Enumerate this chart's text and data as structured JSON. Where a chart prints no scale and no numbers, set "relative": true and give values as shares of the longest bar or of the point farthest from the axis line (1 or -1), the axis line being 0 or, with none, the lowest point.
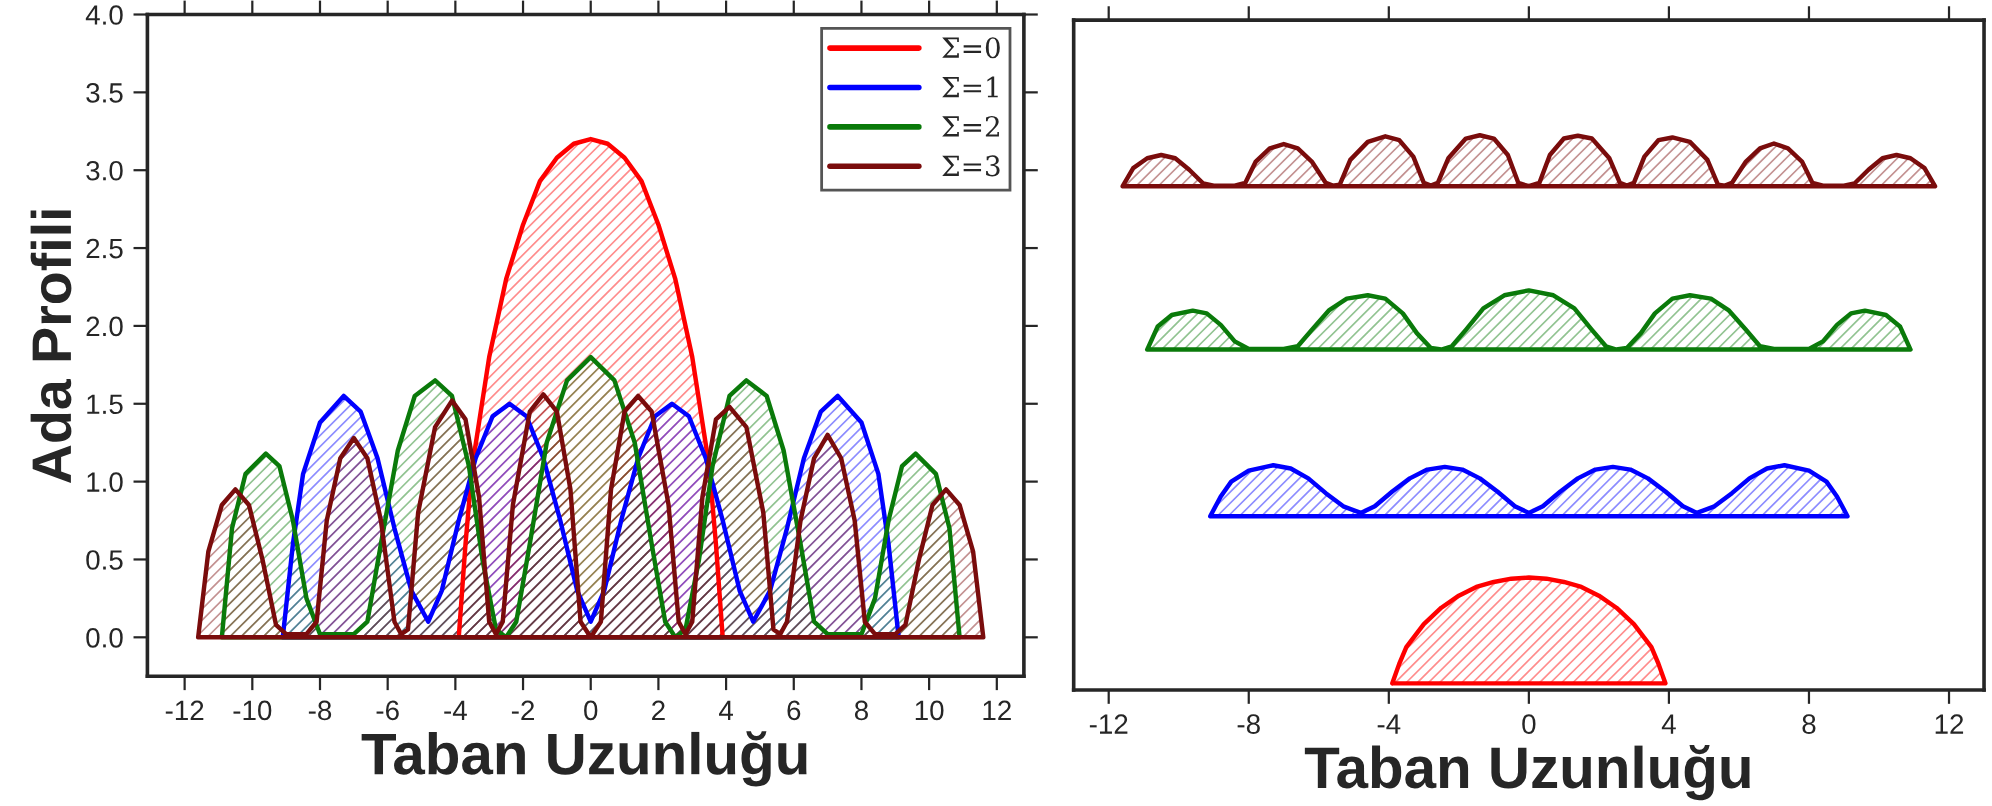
{
  "chart_data": [
    {
      "type": "area",
      "xlabel": "Taban Uzunluğu",
      "ylabel": "Ada Profili",
      "xlim": [
        -13.1,
        12.8
      ],
      "xticks": [
        -12,
        -10,
        -8,
        -6,
        -4,
        -2,
        0,
        2,
        4,
        6,
        8,
        10,
        12
      ],
      "ylim": [
        -0.25,
        4.0
      ],
      "yticks": [
        {
          "value": 0,
          "label": "0.0"
        },
        0.5,
        {
          "value": 1,
          "label": "1.0"
        },
        1.5,
        {
          "value": 2,
          "label": "2.0"
        },
        2.5,
        {
          "value": 3,
          "label": "3.0"
        },
        3.5,
        {
          "value": 4,
          "label": "4.0"
        }
      ],
      "legend": "top right",
      "series": [
        {
          "name": "Σ=0",
          "color": "#ff0000",
          "x": [
            -3.9,
            -3.7,
            -3.5,
            -3.0,
            -2.5,
            -2.0,
            -1.5,
            -1.0,
            -0.5,
            0,
            0.5,
            1.0,
            1.5,
            2.0,
            2.5,
            3.0,
            3.5,
            3.7,
            3.9
          ],
          "values": [
            0,
            0.6,
            1.1,
            1.8,
            2.3,
            2.65,
            2.93,
            3.08,
            3.17,
            3.2,
            3.17,
            3.08,
            2.93,
            2.65,
            2.3,
            1.8,
            1.1,
            0.6,
            0
          ]
        },
        {
          "name": "Σ=1",
          "color": "#0000ff",
          "x": [
            -9.1,
            -8.8,
            -8.5,
            -8.0,
            -7.3,
            -6.8,
            -6.3,
            -5.8,
            -5.3,
            -4.8,
            -4.4,
            -3.9,
            -3.4,
            -2.9,
            -2.4,
            -1.9,
            -1.4,
            -0.9,
            -0.4,
            0,
            0.4,
            0.9,
            1.4,
            1.9,
            2.4,
            2.9,
            3.4,
            3.9,
            4.4,
            4.8,
            5.3,
            5.8,
            6.3,
            6.8,
            7.3,
            8.0,
            8.5,
            8.8,
            9.1
          ],
          "values": [
            0,
            0.6,
            1.05,
            1.38,
            1.55,
            1.45,
            1.15,
            0.7,
            0.3,
            0.1,
            0.3,
            0.75,
            1.15,
            1.42,
            1.5,
            1.42,
            1.15,
            0.75,
            0.3,
            0.1,
            0.3,
            0.75,
            1.15,
            1.42,
            1.5,
            1.42,
            1.15,
            0.75,
            0.3,
            0.1,
            0.3,
            0.7,
            1.15,
            1.45,
            1.55,
            1.38,
            1.05,
            0.6,
            0
          ]
        },
        {
          "name": "Σ=2",
          "color": "#0a7a0a",
          "x": [
            -10.9,
            -10.6,
            -10.2,
            -9.6,
            -9.2,
            -8.8,
            -8.4,
            -8.0,
            -7.0,
            -6.6,
            -6.2,
            -5.7,
            -5.2,
            -4.6,
            -4.1,
            -3.6,
            -3.2,
            -2.8,
            -2.5,
            -2.2,
            -1.8,
            -1.3,
            -0.7,
            0,
            0.7,
            1.3,
            1.8,
            2.2,
            2.5,
            2.8,
            3.2,
            3.6,
            4.1,
            4.6,
            5.2,
            5.7,
            6.2,
            6.6,
            7.0,
            8.0,
            8.4,
            8.8,
            9.2,
            9.6,
            10.2,
            10.6,
            10.9
          ],
          "values": [
            0,
            0.7,
            1.05,
            1.18,
            1.1,
            0.75,
            0.25,
            0.02,
            0.02,
            0.1,
            0.6,
            1.2,
            1.55,
            1.65,
            1.55,
            1.1,
            0.5,
            0.05,
            0,
            0.1,
            0.6,
            1.25,
            1.65,
            1.8,
            1.65,
            1.25,
            0.6,
            0.1,
            0,
            0.05,
            0.5,
            1.1,
            1.55,
            1.65,
            1.55,
            1.2,
            0.6,
            0.1,
            0.02,
            0.02,
            0.25,
            0.75,
            1.1,
            1.18,
            1.05,
            0.7,
            0
          ]
        },
        {
          "name": "Σ=3",
          "color": "#7a0c0c",
          "x": [
            -11.6,
            -11.3,
            -10.9,
            -10.5,
            -10.1,
            -9.7,
            -9.3,
            -9.0,
            -8.4,
            -8.1,
            -7.8,
            -7.4,
            -7.0,
            -6.6,
            -6.2,
            -5.8,
            -5.6,
            -5.4,
            -5.1,
            -4.6,
            -4.1,
            -3.7,
            -3.3,
            -3.0,
            -2.8,
            -2.6,
            -2.3,
            -1.8,
            -1.4,
            -1.0,
            -0.6,
            -0.3,
            0,
            0.3,
            0.6,
            1.0,
            1.4,
            1.8,
            2.3,
            2.6,
            2.8,
            3.0,
            3.3,
            3.7,
            4.1,
            4.6,
            5.1,
            5.4,
            5.6,
            5.8,
            6.2,
            6.6,
            7.0,
            7.4,
            7.8,
            8.1,
            8.4,
            9.0,
            9.3,
            9.7,
            10.1,
            10.5,
            10.9,
            11.3,
            11.6
          ],
          "values": [
            0,
            0.55,
            0.85,
            0.95,
            0.85,
            0.5,
            0.08,
            0.02,
            0.02,
            0.1,
            0.75,
            1.15,
            1.28,
            1.15,
            0.75,
            0.1,
            0.02,
            0.05,
            0.8,
            1.35,
            1.52,
            1.4,
            0.9,
            0.1,
            0.02,
            0.1,
            0.85,
            1.45,
            1.56,
            1.45,
            0.95,
            0.1,
            0,
            0.1,
            0.95,
            1.45,
            1.55,
            1.45,
            0.85,
            0.1,
            0.02,
            0.1,
            0.9,
            1.4,
            1.48,
            1.35,
            0.8,
            0.05,
            0.02,
            0.1,
            0.75,
            1.15,
            1.3,
            1.15,
            0.75,
            0.1,
            0.02,
            0.02,
            0.08,
            0.5,
            0.85,
            0.95,
            0.85,
            0.55,
            0
          ]
        }
      ]
    },
    {
      "type": "area",
      "xlabel": "Taban Uzunluğu",
      "relative": true,
      "tick_labels": "x",
      "xlim": [
        -13,
        13
      ],
      "xticks": [
        -12,
        -8,
        -4,
        0,
        4,
        8,
        12
      ],
      "series": [
        {
          "color": "#ff0000",
          "x": [
            -3.9,
            -3.7,
            -3.5,
            -3.0,
            -2.5,
            -2.0,
            -1.5,
            -1.0,
            -0.5,
            0,
            0.5,
            1.0,
            1.5,
            2.0,
            2.5,
            3.0,
            3.5,
            3.7,
            3.9
          ],
          "values": [
            0,
            0.036,
            0.066,
            0.108,
            0.138,
            0.16,
            0.176,
            0.185,
            0.191,
            0.193,
            0.191,
            0.185,
            0.176,
            0.16,
            0.138,
            0.108,
            0.066,
            0.036,
            0
          ]
        },
        {
          "color": "#0000ff",
          "x": [
            -9.1,
            -8.8,
            -8.5,
            -8.0,
            -7.3,
            -6.8,
            -6.3,
            -5.8,
            -5.3,
            -4.8,
            -4.4,
            -3.9,
            -3.4,
            -2.9,
            -2.4,
            -1.9,
            -1.4,
            -0.9,
            -0.4,
            0,
            0.4,
            0.9,
            1.4,
            1.9,
            2.4,
            2.9,
            3.4,
            3.9,
            4.4,
            4.8,
            5.3,
            5.8,
            6.3,
            6.8,
            7.3,
            8.0,
            8.5,
            8.8,
            9.1
          ],
          "values": [
            0.305,
            0.341,
            0.368,
            0.388,
            0.398,
            0.392,
            0.374,
            0.347,
            0.323,
            0.311,
            0.323,
            0.35,
            0.374,
            0.39,
            0.395,
            0.39,
            0.374,
            0.35,
            0.323,
            0.311,
            0.323,
            0.35,
            0.374,
            0.39,
            0.395,
            0.39,
            0.374,
            0.35,
            0.323,
            0.311,
            0.323,
            0.347,
            0.374,
            0.392,
            0.398,
            0.388,
            0.368,
            0.341,
            0.305
          ]
        },
        {
          "color": "#0a7a0a",
          "x": [
            -10.9,
            -10.6,
            -10.2,
            -9.6,
            -9.2,
            -8.8,
            -8.4,
            -8.0,
            -7.0,
            -6.6,
            -6.2,
            -5.7,
            -5.2,
            -4.6,
            -4.1,
            -3.6,
            -3.2,
            -2.8,
            -2.5,
            -2.2,
            -1.8,
            -1.3,
            -0.7,
            0,
            0.7,
            1.3,
            1.8,
            2.2,
            2.5,
            2.8,
            3.2,
            3.6,
            4.1,
            4.6,
            5.2,
            5.7,
            6.2,
            6.6,
            7.0,
            8.0,
            8.4,
            8.8,
            9.2,
            9.6,
            10.2,
            10.6,
            10.9
          ],
          "values": [
            0.609,
            0.651,
            0.672,
            0.68,
            0.675,
            0.654,
            0.624,
            0.61,
            0.61,
            0.615,
            0.645,
            0.681,
            0.702,
            0.708,
            0.702,
            0.675,
            0.639,
            0.612,
            0.609,
            0.615,
            0.645,
            0.684,
            0.708,
            0.717,
            0.708,
            0.684,
            0.645,
            0.615,
            0.609,
            0.612,
            0.639,
            0.675,
            0.702,
            0.708,
            0.702,
            0.681,
            0.645,
            0.615,
            0.61,
            0.61,
            0.624,
            0.654,
            0.675,
            0.68,
            0.672,
            0.651,
            0.609
          ]
        },
        {
          "color": "#7a0c0c",
          "x": [
            -11.6,
            -11.3,
            -10.9,
            -10.5,
            -10.1,
            -9.7,
            -9.3,
            -9.0,
            -8.4,
            -8.1,
            -7.8,
            -7.4,
            -7.0,
            -6.6,
            -6.2,
            -5.8,
            -5.6,
            -5.4,
            -5.1,
            -4.6,
            -4.1,
            -3.7,
            -3.3,
            -3.0,
            -2.8,
            -2.6,
            -2.3,
            -1.8,
            -1.4,
            -1.0,
            -0.6,
            -0.3,
            0,
            0.3,
            0.6,
            1.0,
            1.4,
            1.8,
            2.3,
            2.6,
            2.8,
            3.0,
            3.3,
            3.7,
            4.1,
            4.6,
            5.1,
            5.4,
            5.6,
            5.8,
            6.2,
            6.6,
            7.0,
            7.4,
            7.8,
            8.1,
            8.4,
            9.0,
            9.3,
            9.7,
            10.1,
            10.5,
            10.9,
            11.3,
            11.6
          ],
          "values": [
            0.907,
            0.94,
            0.958,
            0.964,
            0.958,
            0.937,
            0.912,
            0.908,
            0.908,
            0.913,
            0.952,
            0.976,
            0.984,
            0.976,
            0.952,
            0.913,
            0.908,
            0.91,
            0.955,
            0.988,
            0.998,
            0.991,
            0.961,
            0.913,
            0.908,
            0.913,
            0.958,
            0.994,
            1.0,
            0.994,
            0.964,
            0.913,
            0.907,
            0.913,
            0.964,
            0.994,
            0.999,
            0.994,
            0.958,
            0.913,
            0.908,
            0.913,
            0.961,
            0.991,
            0.996,
            0.988,
            0.955,
            0.91,
            0.908,
            0.913,
            0.952,
            0.976,
            0.985,
            0.976,
            0.952,
            0.913,
            0.908,
            0.908,
            0.912,
            0.937,
            0.958,
            0.964,
            0.958,
            0.94,
            0.907
          ]
        }
      ]
    }
  ]
}
